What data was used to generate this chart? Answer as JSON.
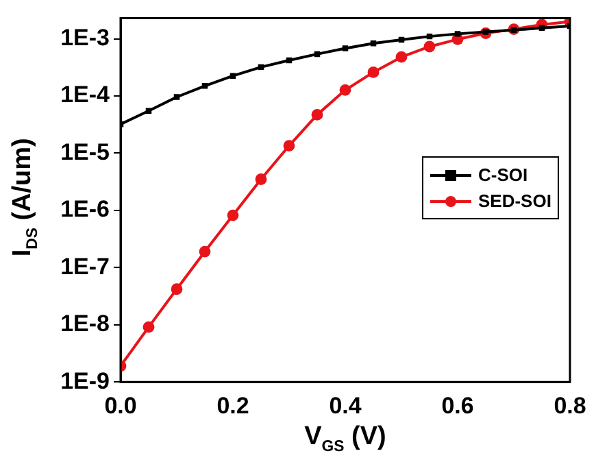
{
  "chart_data": {
    "type": "line",
    "xlabel": "V$_{GS}$ (V)",
    "ylabel": "I$_{DS}$ (A/um)",
    "log": "y",
    "xlim": [
      0,
      0.8
    ],
    "xticks": [
      {
        "value": 0,
        "label": "0.0"
      },
      0.2,
      0.4,
      0.6,
      0.8
    ],
    "ylim": [
      1e-09,
      0.0023
    ],
    "yticks": [
      {
        "value": 1e-09,
        "label": "1E-9"
      },
      {
        "value": 1e-08,
        "label": "1E-8"
      },
      {
        "value": 1e-07,
        "label": "1E-7"
      },
      {
        "value": 1e-06,
        "label": "1E-6"
      },
      {
        "value": 1e-05,
        "label": "1E-5"
      },
      {
        "value": 0.0001,
        "label": "1E-4"
      },
      {
        "value": 0.001,
        "label": "1E-3"
      }
    ],
    "x": [
      0,
      0.05,
      0.1,
      0.15,
      0.2,
      0.25,
      0.3,
      0.35,
      0.4,
      0.45,
      0.5,
      0.55,
      0.6,
      0.65,
      0.7,
      0.75,
      0.8
    ],
    "legend": "right",
    "grid": false,
    "line_style": "solid",
    "series": [
      {
        "name": "C-SOI",
        "color": "#000000",
        "marker": "square",
        "values": [
          3.2e-05,
          5.5e-05,
          9.6e-05,
          0.00015,
          0.000225,
          0.00032,
          0.00042,
          0.00054,
          0.00068,
          0.00083,
          0.00096,
          0.0011,
          0.00122,
          0.00132,
          0.00142,
          0.00155,
          0.00167
        ]
      },
      {
        "name": "SED-SOI",
        "color": "#e8141a",
        "marker": "circle",
        "values": [
          1.9e-09,
          9.1e-09,
          4.2e-08,
          1.9e-07,
          8.2e-07,
          3.5e-06,
          1.35e-05,
          4.7e-05,
          0.000127,
          0.00026,
          0.00048,
          0.00073,
          0.00098,
          0.00125,
          0.00147,
          0.00177,
          0.002
        ]
      }
    ]
  }
}
